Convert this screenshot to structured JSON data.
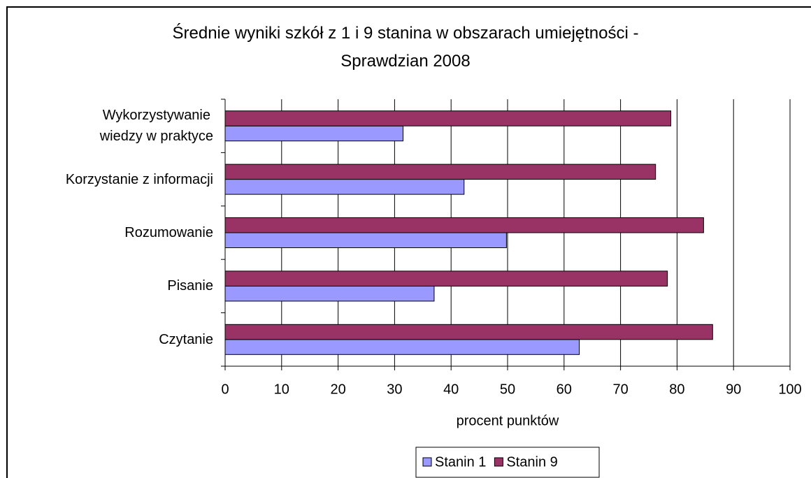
{
  "chart_data": {
    "type": "bar",
    "orientation": "horizontal",
    "title": "Średnie wyniki szkół z 1 i 9 stanina w obszarach umiejętności -\nSprawdzian 2008",
    "categories": [
      "Czytanie",
      "Pisanie",
      "Rozumowanie",
      "Korzystanie z informacji",
      "Wykorzystywanie\nwiedzy w praktyce"
    ],
    "series": [
      {
        "name": "Stanin 1",
        "color": "#9999ff",
        "values": [
          62.7,
          37.0,
          49.8,
          42.3,
          31.5
        ]
      },
      {
        "name": "Stanin 9",
        "color": "#993366",
        "values": [
          86.3,
          78.3,
          84.7,
          76.2,
          78.9
        ]
      }
    ],
    "xlabel": "procent punktów",
    "xlim": [
      0,
      100
    ],
    "xticks": [
      0,
      10,
      20,
      30,
      40,
      50,
      60,
      70,
      80,
      90,
      100
    ],
    "grid": true,
    "legend": "bottom"
  }
}
